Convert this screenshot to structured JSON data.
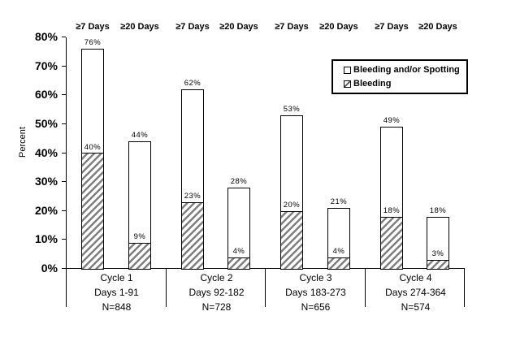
{
  "chart_data": {
    "type": "bar",
    "stacked": true,
    "title": "",
    "xlabel": "",
    "ylabel": "Percent",
    "ylim": [
      0,
      80
    ],
    "yticks": [
      0,
      10,
      20,
      30,
      40,
      50,
      60,
      70,
      80
    ],
    "ytick_suffix": "%",
    "grid": false,
    "legend_position": "top-right-inside",
    "legend": [
      "Bleeding and/or Spotting",
      "Bleeding"
    ],
    "series_note": "Each bar is stacked: 'Bleeding' (hatched, bottom segment) within total 'Bleeding and/or Spotting' (white, full bar height). Labels show total % above bar and bleeding % above hatched segment.",
    "groups": [
      {
        "cycle": "Cycle 1",
        "days": "Days 1-91",
        "n": "N=848",
        "bars": [
          {
            "label": "≥7 Days",
            "total": 76,
            "bleeding": 40
          },
          {
            "label": "≥20 Days",
            "total": 44,
            "bleeding": 9
          }
        ]
      },
      {
        "cycle": "Cycle 2",
        "days": "Days 92-182",
        "n": "N=728",
        "bars": [
          {
            "label": "≥7 Days",
            "total": 62,
            "bleeding": 23
          },
          {
            "label": "≥20 Days",
            "total": 28,
            "bleeding": 4
          }
        ]
      },
      {
        "cycle": "Cycle 3",
        "days": "Days 183-273",
        "n": "N=656",
        "bars": [
          {
            "label": "≥7 Days",
            "total": 53,
            "bleeding": 20
          },
          {
            "label": "≥20 Days",
            "total": 21,
            "bleeding": 4
          }
        ]
      },
      {
        "cycle": "Cycle 4",
        "days": "Days 274-364",
        "n": "N=574",
        "bars": [
          {
            "label": "≥7 Days",
            "total": 49,
            "bleeding": 18
          },
          {
            "label": "≥20 Days",
            "total": 18,
            "bleeding": 3
          }
        ]
      }
    ]
  }
}
